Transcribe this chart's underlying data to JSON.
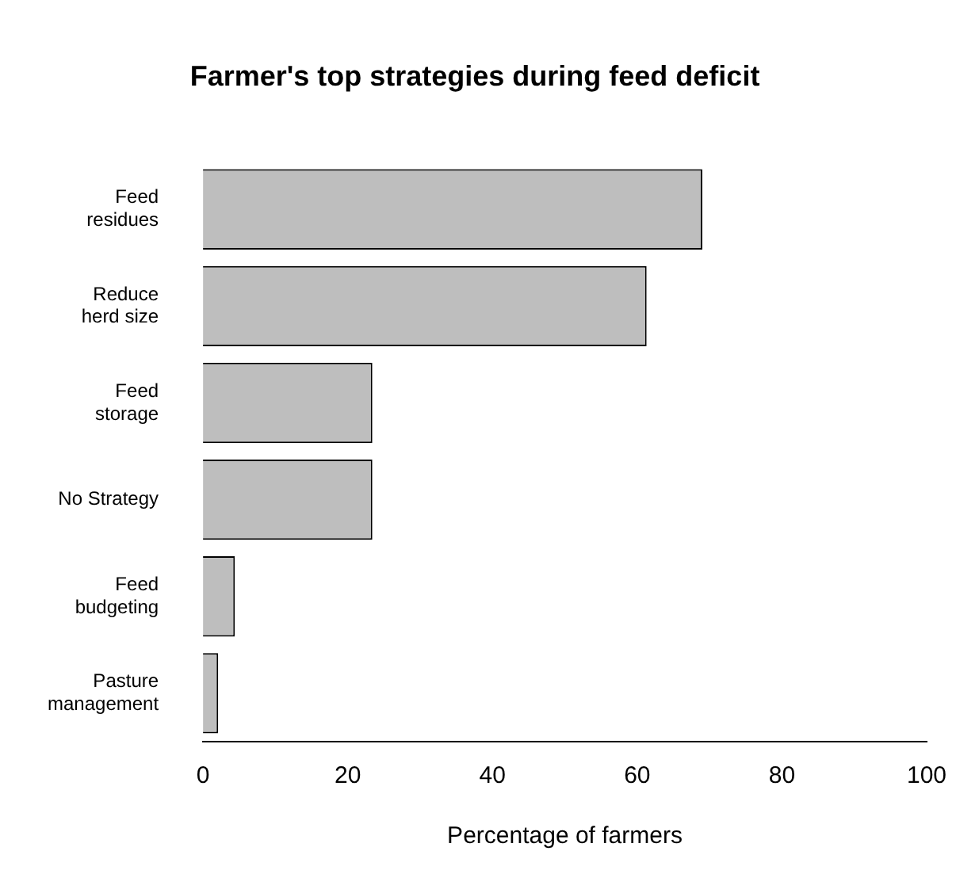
{
  "chart_data": {
    "type": "bar",
    "orientation": "horizontal",
    "title": "Farmer's top strategies during feed deficit",
    "xlabel": "Percentage of farmers",
    "categories": [
      "Feed\nresidues",
      "Reduce\nherd size",
      "Feed\nstorage",
      "No Strategy",
      "Feed\nbudgeting",
      "Pasture\nmanagement"
    ],
    "values": [
      69,
      61.3,
      23.4,
      23.4,
      4.4,
      2.1
    ],
    "color": "#bebebe",
    "xlim": [
      0,
      100
    ],
    "xticks": [
      0,
      20,
      40,
      60,
      80,
      100
    ],
    "grid": false,
    "legend": false
  }
}
